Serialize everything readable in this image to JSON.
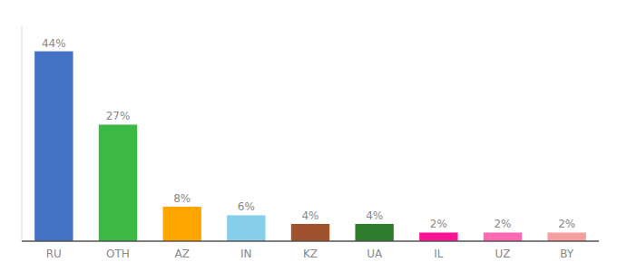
{
  "chart_data": {
    "type": "bar",
    "categories": [
      "RU",
      "OTH",
      "AZ",
      "IN",
      "KZ",
      "UA",
      "IL",
      "UZ",
      "BY"
    ],
    "values": [
      44,
      27,
      8,
      6,
      4,
      4,
      2,
      2,
      2
    ],
    "value_labels": [
      "44%",
      "27%",
      "8%",
      "6%",
      "4%",
      "4%",
      "2%",
      "2%",
      "2%"
    ],
    "colors": [
      "#4472C4",
      "#3CB844",
      "#FFA500",
      "#87CEEB",
      "#A0522D",
      "#2D7D2D",
      "#FF1493",
      "#FF69B4",
      "#F4A0A0"
    ],
    "ylim": [
      0,
      50
    ],
    "data_labels": true,
    "tick_labels": "x",
    "grid": false
  }
}
